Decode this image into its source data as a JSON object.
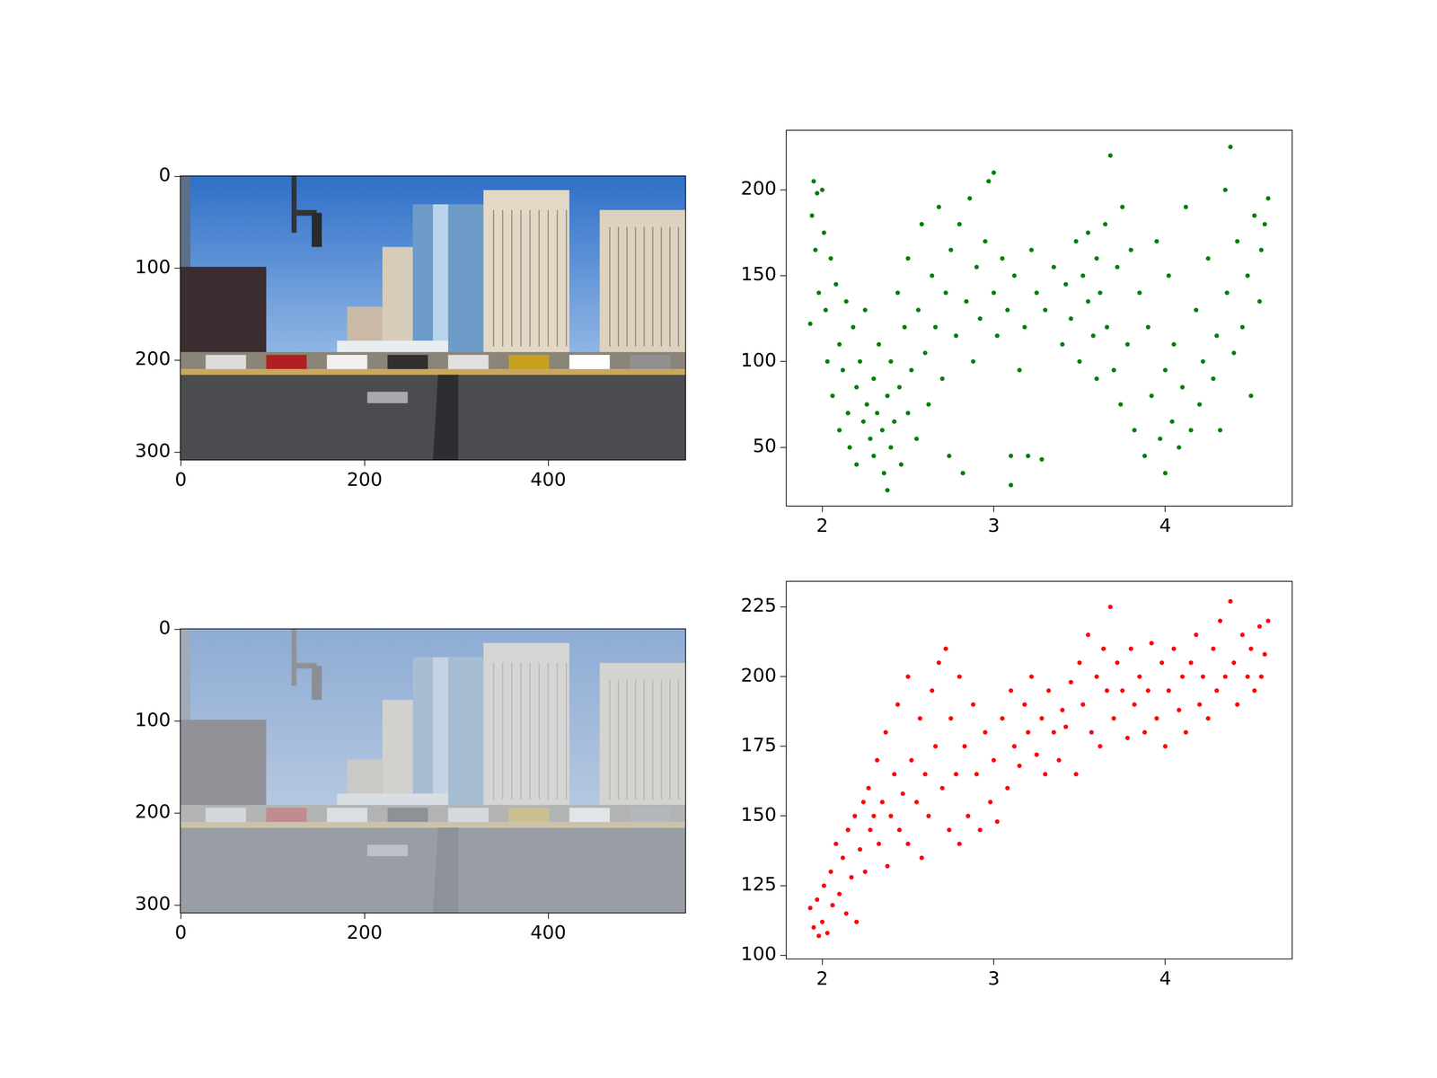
{
  "chart_data": [
    {
      "type": "image",
      "xlim": [
        -0.5,
        549.5
      ],
      "ylim": [
        308.5,
        -0.5
      ],
      "xticks": [
        0,
        200,
        400
      ],
      "yticks": [
        0,
        100,
        200,
        300
      ]
    },
    {
      "type": "scatter",
      "color": "#008000",
      "xlim": [
        1.79,
        4.74
      ],
      "ylim": [
        15.8,
        234.7
      ],
      "xticks": [
        2,
        3,
        4
      ],
      "yticks": [
        50,
        100,
        150,
        200
      ],
      "x": [
        1.93,
        1.94,
        1.95,
        1.96,
        1.97,
        1.98,
        2.0,
        2.01,
        2.02,
        2.03,
        2.05,
        2.06,
        2.08,
        2.1,
        2.1,
        2.12,
        2.14,
        2.15,
        2.16,
        2.18,
        2.2,
        2.2,
        2.22,
        2.24,
        2.25,
        2.26,
        2.28,
        2.3,
        2.3,
        2.32,
        2.33,
        2.35,
        2.36,
        2.38,
        2.38,
        2.4,
        2.4,
        2.42,
        2.44,
        2.45,
        2.46,
        2.48,
        2.5,
        2.5,
        2.52,
        2.55,
        2.56,
        2.58,
        2.6,
        2.62,
        2.64,
        2.66,
        2.68,
        2.7,
        2.72,
        2.74,
        2.75,
        2.78,
        2.8,
        2.82,
        2.84,
        2.86,
        2.88,
        2.9,
        2.92,
        2.95,
        2.97,
        3.0,
        3.0,
        3.02,
        3.05,
        3.08,
        3.1,
        3.1,
        3.12,
        3.15,
        3.18,
        3.2,
        3.22,
        3.25,
        3.28,
        3.3,
        3.35,
        3.4,
        3.42,
        3.45,
        3.48,
        3.5,
        3.52,
        3.55,
        3.55,
        3.58,
        3.6,
        3.6,
        3.62,
        3.65,
        3.66,
        3.68,
        3.7,
        3.72,
        3.74,
        3.75,
        3.78,
        3.8,
        3.82,
        3.85,
        3.88,
        3.9,
        3.92,
        3.95,
        3.97,
        4.0,
        4.0,
        4.02,
        4.04,
        4.05,
        4.08,
        4.1,
        4.12,
        4.15,
        4.18,
        4.2,
        4.22,
        4.25,
        4.28,
        4.3,
        4.32,
        4.35,
        4.36,
        4.38,
        4.4,
        4.42,
        4.45,
        4.48,
        4.5,
        4.52,
        4.55,
        4.58,
        4.6,
        4.56
      ],
      "values": [
        122,
        185,
        205,
        165,
        198,
        140,
        200,
        175,
        130,
        100,
        160,
        80,
        145,
        110,
        60,
        95,
        135,
        70,
        50,
        120,
        85,
        40,
        100,
        65,
        130,
        75,
        55,
        90,
        45,
        70,
        110,
        60,
        35,
        25,
        80,
        50,
        100,
        65,
        140,
        85,
        40,
        120,
        70,
        160,
        95,
        55,
        130,
        180,
        105,
        75,
        150,
        120,
        190,
        90,
        140,
        45,
        165,
        115,
        180,
        35,
        135,
        195,
        100,
        155,
        125,
        170,
        205,
        140,
        210,
        115,
        160,
        130,
        45,
        28,
        150,
        95,
        120,
        45,
        165,
        140,
        43,
        130,
        155,
        110,
        145,
        125,
        170,
        100,
        150,
        135,
        175,
        115,
        160,
        90,
        140,
        180,
        120,
        220,
        95,
        155,
        75,
        190,
        110,
        165,
        60,
        140,
        45,
        120,
        80,
        170,
        55,
        35,
        95,
        150,
        65,
        110,
        50,
        85,
        190,
        60,
        130,
        75,
        100,
        160,
        90,
        115,
        60,
        200,
        140,
        225,
        105,
        170,
        120,
        150,
        80,
        185,
        135,
        180,
        195,
        165
      ]
    },
    {
      "type": "image",
      "xlim": [
        -0.5,
        549.5
      ],
      "ylim": [
        308.5,
        -0.5
      ],
      "xticks": [
        0,
        200,
        400
      ],
      "yticks": [
        0,
        100,
        200,
        300
      ]
    },
    {
      "type": "scatter",
      "color": "#ff0000",
      "xlim": [
        1.79,
        4.74
      ],
      "ylim": [
        98.7,
        234.2
      ],
      "xticks": [
        2,
        3,
        4
      ],
      "yticks": [
        100,
        125,
        150,
        175,
        200,
        225
      ],
      "x": [
        1.93,
        1.95,
        1.97,
        1.98,
        2.0,
        2.01,
        2.03,
        2.05,
        2.06,
        2.08,
        2.1,
        2.12,
        2.14,
        2.15,
        2.17,
        2.19,
        2.2,
        2.22,
        2.24,
        2.25,
        2.27,
        2.28,
        2.3,
        2.32,
        2.33,
        2.35,
        2.37,
        2.38,
        2.4,
        2.42,
        2.44,
        2.45,
        2.47,
        2.5,
        2.5,
        2.52,
        2.55,
        2.57,
        2.58,
        2.6,
        2.62,
        2.64,
        2.66,
        2.68,
        2.7,
        2.72,
        2.74,
        2.75,
        2.78,
        2.8,
        2.8,
        2.83,
        2.85,
        2.88,
        2.9,
        2.92,
        2.95,
        2.98,
        3.0,
        3.02,
        3.05,
        3.08,
        3.1,
        3.12,
        3.15,
        3.18,
        3.2,
        3.22,
        3.25,
        3.28,
        3.3,
        3.32,
        3.35,
        3.38,
        3.4,
        3.42,
        3.45,
        3.48,
        3.5,
        3.52,
        3.55,
        3.57,
        3.6,
        3.62,
        3.64,
        3.66,
        3.68,
        3.7,
        3.72,
        3.75,
        3.78,
        3.8,
        3.82,
        3.85,
        3.88,
        3.9,
        3.92,
        3.95,
        3.98,
        4.0,
        4.02,
        4.05,
        4.08,
        4.1,
        4.12,
        4.15,
        4.18,
        4.2,
        4.22,
        4.25,
        4.28,
        4.3,
        4.32,
        4.35,
        4.38,
        4.4,
        4.42,
        4.45,
        4.48,
        4.5,
        4.52,
        4.55,
        4.58,
        4.6,
        4.56
      ],
      "values": [
        117,
        110,
        120,
        107,
        112,
        125,
        108,
        130,
        118,
        140,
        122,
        135,
        115,
        145,
        128,
        150,
        112,
        138,
        155,
        130,
        160,
        145,
        150,
        170,
        140,
        155,
        180,
        132,
        150,
        165,
        190,
        145,
        158,
        200,
        140,
        170,
        155,
        185,
        135,
        165,
        150,
        195,
        175,
        205,
        160,
        210,
        145,
        185,
        165,
        200,
        140,
        175,
        150,
        190,
        165,
        145,
        180,
        155,
        170,
        148,
        185,
        160,
        195,
        175,
        168,
        190,
        180,
        200,
        172,
        185,
        165,
        195,
        180,
        170,
        188,
        182,
        198,
        165,
        205,
        190,
        215,
        180,
        200,
        175,
        210,
        195,
        225,
        185,
        205,
        195,
        178,
        210,
        190,
        200,
        180,
        195,
        212,
        185,
        205,
        175,
        195,
        210,
        188,
        200,
        180,
        205,
        215,
        190,
        200,
        185,
        210,
        195,
        220,
        200,
        227,
        205,
        190,
        215,
        200,
        210,
        195,
        218,
        208,
        220,
        200
      ]
    }
  ]
}
